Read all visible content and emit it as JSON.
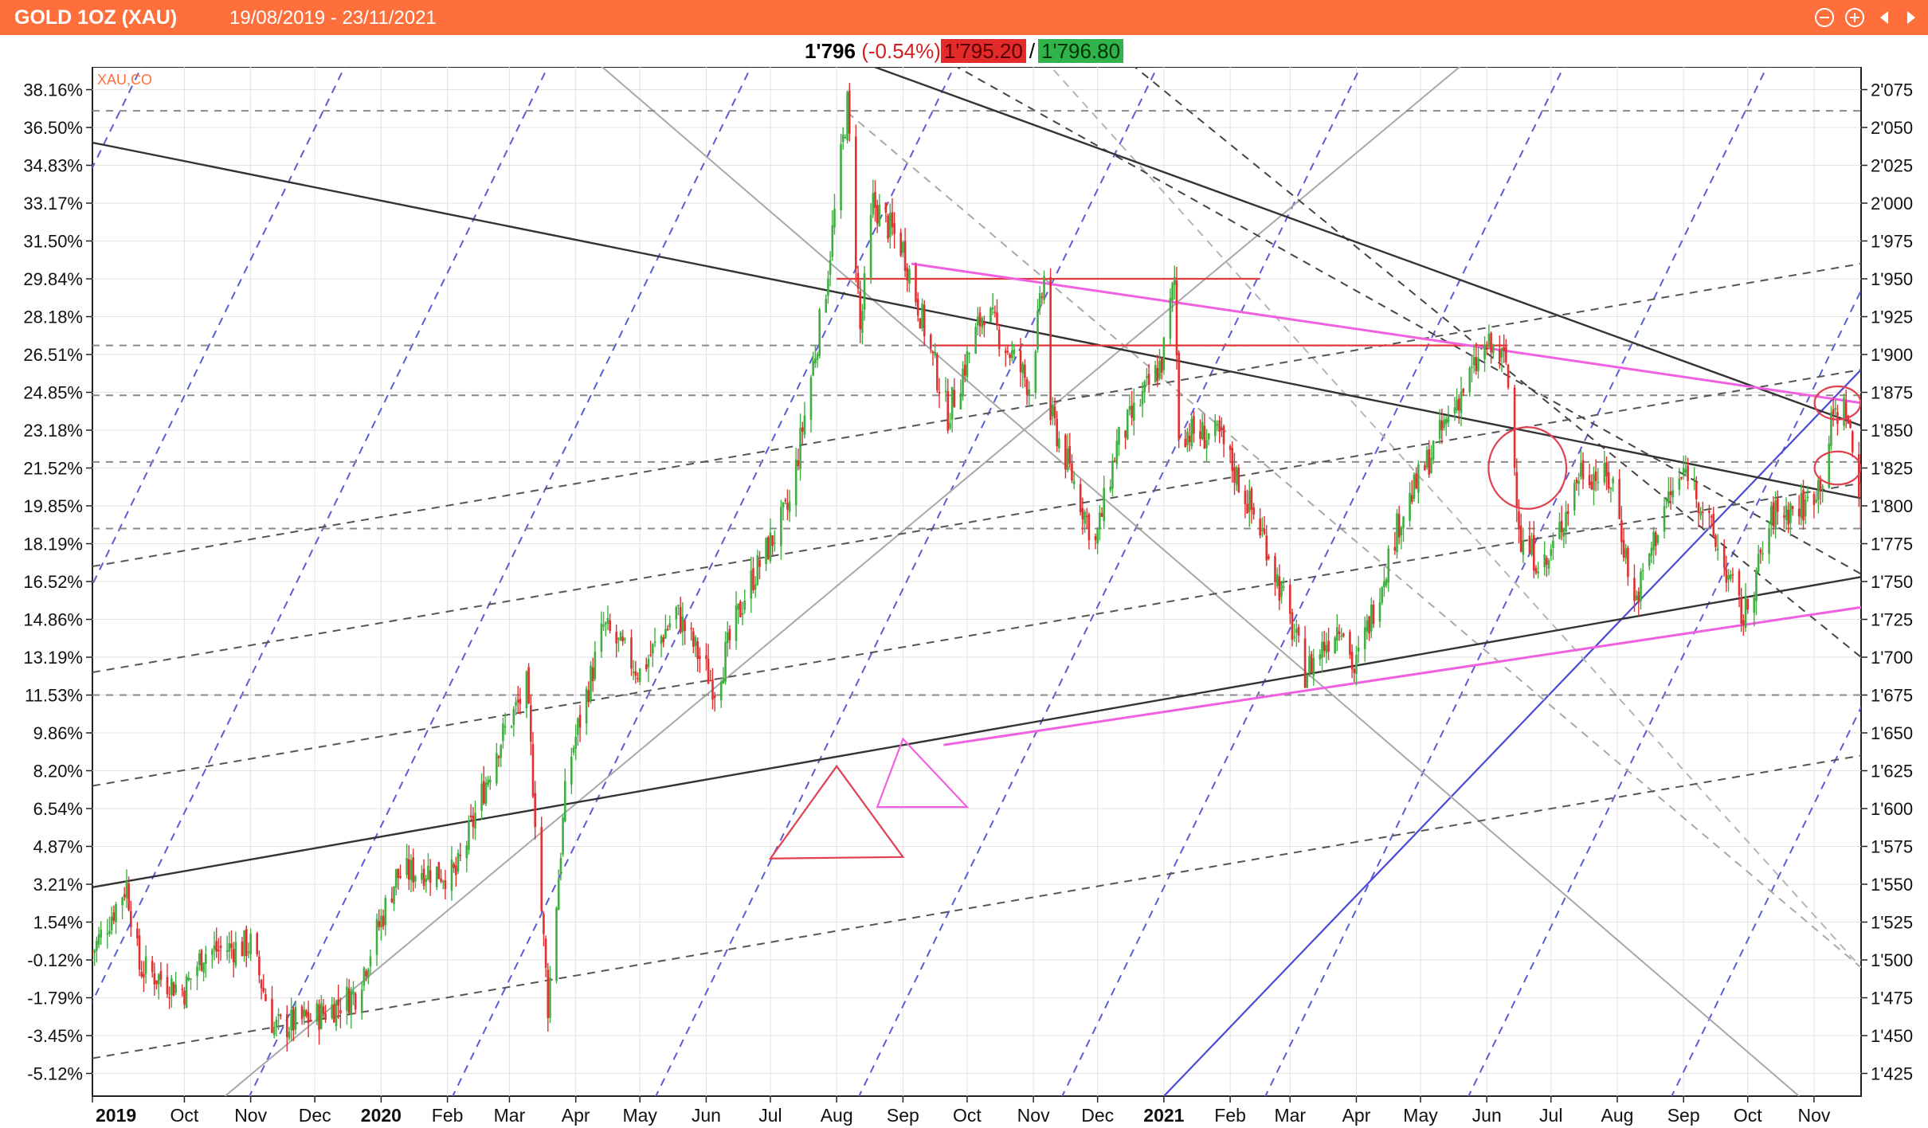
{
  "header": {
    "symbol": "GOLD 1OZ (XAU)",
    "date_range": "19/08/2019 - 23/11/2021",
    "accent_color": "#ff6f3c",
    "icons": [
      "zoom-out-icon",
      "zoom-in-icon",
      "arrow-left-icon",
      "arrow-right-icon"
    ]
  },
  "quote": {
    "last": "1'796",
    "change": "(-0.54%)",
    "bid": "1'795.20",
    "separator": "/",
    "ask": "1'796.80",
    "bid_color": "#e32b2b",
    "ask_color": "#2fb34a"
  },
  "chart_data": {
    "type": "candlestick",
    "source_label": "XAU,CO",
    "x_range": [
      "2019-08-19",
      "2021-11-23"
    ],
    "y_range": [
      1410,
      2090
    ],
    "y_ticks_price": [
      "2'075",
      "2'050",
      "2'025",
      "2'000",
      "1'975",
      "1'950",
      "1'925",
      "1'900",
      "1'875",
      "1'850",
      "1'825",
      "1'800",
      "1'775",
      "1'750",
      "1'725",
      "1'700",
      "1'675",
      "1'650",
      "1'625",
      "1'600",
      "1'575",
      "1'550",
      "1'525",
      "1'500",
      "1'475",
      "1'450",
      "1'425"
    ],
    "y_ticks_pct": [
      "38.16%",
      "36.50%",
      "34.83%",
      "33.17%",
      "31.50%",
      "29.84%",
      "28.18%",
      "26.51%",
      "24.85%",
      "23.18%",
      "21.52%",
      "19.85%",
      "18.19%",
      "16.52%",
      "14.86%",
      "13.19%",
      "11.53%",
      "9.86%",
      "8.20%",
      "6.54%",
      "4.87%",
      "3.21%",
      "1.54%",
      "-0.12%",
      "-1.79%",
      "-3.45%",
      "-5.12%"
    ],
    "x_ticks": [
      {
        "label": "2019",
        "date": "2019-08-19",
        "bold": true
      },
      {
        "label": "Oct",
        "date": "2019-10-01",
        "bold": false
      },
      {
        "label": "Nov",
        "date": "2019-11-01",
        "bold": false
      },
      {
        "label": "Dec",
        "date": "2019-12-01",
        "bold": false
      },
      {
        "label": "2020",
        "date": "2020-01-01",
        "bold": true
      },
      {
        "label": "Feb",
        "date": "2020-02-01",
        "bold": false
      },
      {
        "label": "Mar",
        "date": "2020-03-01",
        "bold": false
      },
      {
        "label": "Apr",
        "date": "2020-04-01",
        "bold": false
      },
      {
        "label": "May",
        "date": "2020-05-01",
        "bold": false
      },
      {
        "label": "Jun",
        "date": "2020-06-01",
        "bold": false
      },
      {
        "label": "Jul",
        "date": "2020-07-01",
        "bold": false
      },
      {
        "label": "Aug",
        "date": "2020-08-01",
        "bold": false
      },
      {
        "label": "Sep",
        "date": "2020-09-01",
        "bold": false
      },
      {
        "label": "Oct",
        "date": "2020-10-01",
        "bold": false
      },
      {
        "label": "Nov",
        "date": "2020-11-01",
        "bold": false
      },
      {
        "label": "Dec",
        "date": "2020-12-01",
        "bold": false
      },
      {
        "label": "2021",
        "date": "2021-01-01",
        "bold": true
      },
      {
        "label": "Feb",
        "date": "2021-02-01",
        "bold": false
      },
      {
        "label": "Mar",
        "date": "2021-03-01",
        "bold": false
      },
      {
        "label": "Apr",
        "date": "2021-04-01",
        "bold": false
      },
      {
        "label": "May",
        "date": "2021-05-01",
        "bold": false
      },
      {
        "label": "Jun",
        "date": "2021-06-01",
        "bold": false
      },
      {
        "label": "Jul",
        "date": "2021-07-01",
        "bold": false
      },
      {
        "label": "Aug",
        "date": "2021-08-01",
        "bold": false
      },
      {
        "label": "Sep",
        "date": "2021-09-01",
        "bold": false
      },
      {
        "label": "Oct",
        "date": "2021-10-01",
        "bold": false
      },
      {
        "label": "Nov",
        "date": "2021-11-01",
        "bold": false
      }
    ],
    "close_path": [
      [
        "2019-08-19",
        1505
      ],
      [
        "2019-09-04",
        1550
      ],
      [
        "2019-09-10",
        1495
      ],
      [
        "2019-10-01",
        1480
      ],
      [
        "2019-10-10",
        1505
      ],
      [
        "2019-11-01",
        1510
      ],
      [
        "2019-11-12",
        1455
      ],
      [
        "2019-12-01",
        1462
      ],
      [
        "2019-12-20",
        1478
      ],
      [
        "2020-01-08",
        1555
      ],
      [
        "2020-01-20",
        1560
      ],
      [
        "2020-02-05",
        1556
      ],
      [
        "2020-02-24",
        1640
      ],
      [
        "2020-03-09",
        1680
      ],
      [
        "2020-03-19",
        1470
      ],
      [
        "2020-03-28",
        1625
      ],
      [
        "2020-04-14",
        1720
      ],
      [
        "2020-05-01",
        1690
      ],
      [
        "2020-05-18",
        1730
      ],
      [
        "2020-06-05",
        1680
      ],
      [
        "2020-06-20",
        1745
      ],
      [
        "2020-07-10",
        1800
      ],
      [
        "2020-07-27",
        1945
      ],
      [
        "2020-08-06",
        2065
      ],
      [
        "2020-08-12",
        1915
      ],
      [
        "2020-08-18",
        2000
      ],
      [
        "2020-09-01",
        1970
      ],
      [
        "2020-09-22",
        1860
      ],
      [
        "2020-10-09",
        1930
      ],
      [
        "2020-10-30",
        1880
      ],
      [
        "2020-11-06",
        1950
      ],
      [
        "2020-11-09",
        1860
      ],
      [
        "2020-11-30",
        1775
      ],
      [
        "2020-12-10",
        1840
      ],
      [
        "2020-12-31",
        1895
      ],
      [
        "2021-01-06",
        1950
      ],
      [
        "2021-01-08",
        1850
      ],
      [
        "2021-01-27",
        1845
      ],
      [
        "2021-02-18",
        1775
      ],
      [
        "2021-03-08",
        1690
      ],
      [
        "2021-03-25",
        1725
      ],
      [
        "2021-03-31",
        1690
      ],
      [
        "2021-04-21",
        1790
      ],
      [
        "2021-05-18",
        1870
      ],
      [
        "2021-06-01",
        1905
      ],
      [
        "2021-06-10",
        1895
      ],
      [
        "2021-06-17",
        1775
      ],
      [
        "2021-06-29",
        1760
      ],
      [
        "2021-07-15",
        1825
      ],
      [
        "2021-07-30",
        1815
      ],
      [
        "2021-08-09",
        1735
      ],
      [
        "2021-08-23",
        1800
      ],
      [
        "2021-09-03",
        1825
      ],
      [
        "2021-09-20",
        1760
      ],
      [
        "2021-09-29",
        1725
      ],
      [
        "2021-10-13",
        1795
      ],
      [
        "2021-10-28",
        1800
      ],
      [
        "2021-11-05",
        1820
      ],
      [
        "2021-11-10",
        1860
      ],
      [
        "2021-11-16",
        1865
      ],
      [
        "2021-11-22",
        1806
      ],
      [
        "2021-11-23",
        1796
      ]
    ],
    "trendlines": [
      {
        "style": "solid-dark",
        "p1": [
          "2019-08-19",
          2040
        ],
        "p2": [
          "2021-11-23",
          1805
        ]
      },
      {
        "style": "solid-dark",
        "p1": [
          "2020-07-01",
          2115
        ],
        "p2": [
          "2021-11-23",
          1853
        ]
      },
      {
        "style": "solid-dark",
        "p1": [
          "2019-08-19",
          1548
        ],
        "p2": [
          "2021-11-23",
          1753
        ]
      },
      {
        "style": "solid-gray",
        "p1": [
          "2019-09-10",
          1000
        ],
        "p2": [
          "2021-11-23",
          2485
        ]
      },
      {
        "style": "solid-gray",
        "p1": [
          "2019-09-10",
          1000
        ],
        "p2": [
          "2021-11-23",
          2485
        ]
      },
      {
        "style": "dash-gray",
        "p1": [
          "2019-08-19",
          1760
        ],
        "p2": [
          "2021-11-23",
          1960
        ]
      },
      {
        "style": "dash-gray",
        "p1": [
          "2019-08-19",
          1690
        ],
        "p2": [
          "2021-11-23",
          1890
        ]
      },
      {
        "style": "dash-gray",
        "p1": [
          "2019-08-19",
          1615
        ],
        "p2": [
          "2021-11-23",
          1815
        ]
      },
      {
        "style": "dash-gray",
        "p1": [
          "2019-08-19",
          1435
        ],
        "p2": [
          "2021-11-23",
          1635
        ]
      }
    ],
    "horizontal_levels": [
      2061,
      1906,
      1873,
      1829,
      1785,
      1675
    ],
    "red_levels": [
      {
        "price": 1950,
        "from": "2020-08-01",
        "to": "2021-02-15"
      },
      {
        "price": 1906,
        "from": "2020-09-15",
        "to": "2021-06-10"
      }
    ],
    "pink_lines": [
      {
        "p1": [
          "2020-09-05",
          1960
        ],
        "p2": [
          "2021-11-23",
          1868
        ]
      },
      {
        "p1": [
          "2020-09-20",
          1642
        ],
        "p2": [
          "2021-11-23",
          1733
        ]
      }
    ],
    "annotations": {
      "circles": [
        {
          "date": "2021-06-20",
          "price": 1825,
          "r": 0.022
        },
        {
          "date": "2021-11-12",
          "price": 1825,
          "r": 0.013
        },
        {
          "date": "2021-11-12",
          "price": 1868,
          "r": 0.013
        }
      ],
      "triangles": [
        {
          "apex": [
            "2020-08-01",
            1628
          ],
          "base_left": [
            "2020-07-01",
            1567
          ],
          "base_right": [
            "2020-09-01",
            1568
          ]
        },
        {
          "apex": [
            "2020-09-01",
            1646
          ],
          "base_left": [
            "2020-08-20",
            1601
          ],
          "base_right": [
            "2020-10-01",
            1601
          ]
        }
      ]
    },
    "up_color": "#3fb040",
    "down_color": "#e03030",
    "grid": true,
    "legend": "none"
  }
}
